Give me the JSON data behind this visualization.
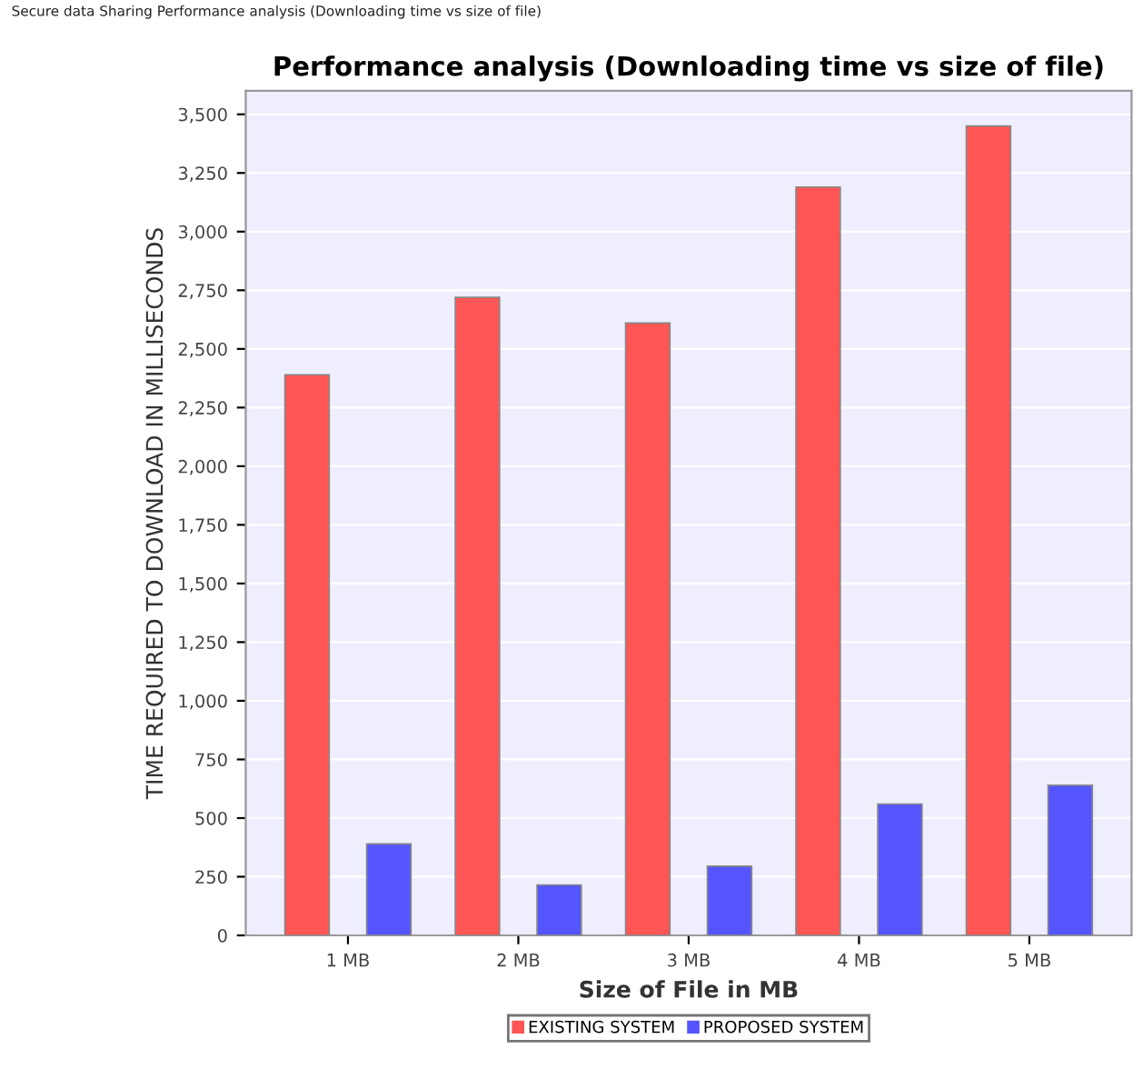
{
  "chart_data": {
    "type": "bar",
    "title": "Performance analysis (Downloading time vs size of file)",
    "annotations": [
      "Secure data Sharing Performance analysis (Downloading time vs size of file)"
    ],
    "xlabel": "Size of File in MB",
    "ylabel": "TIME REQUIRED TO DOWNLOAD IN MILLISECONDS",
    "categories": [
      "1 MB",
      "2 MB",
      "3 MB",
      "4 MB",
      "5 MB"
    ],
    "series": [
      {
        "name": "EXISTING SYSTEM",
        "color": "#ff5555",
        "values": [
          2390,
          2720,
          2610,
          3190,
          3450
        ]
      },
      {
        "name": "PROPOSED SYSTEM",
        "color": "#5555ff",
        "values": [
          390,
          215,
          295,
          560,
          640
        ]
      }
    ],
    "ylim": [
      0,
      3600
    ],
    "yticks": [
      {
        "value": 0,
        "label": "0"
      },
      {
        "value": 250,
        "label": "250"
      },
      {
        "value": 500,
        "label": "500"
      },
      {
        "value": 750,
        "label": "750"
      },
      {
        "value": 1000,
        "label": "1,000"
      },
      {
        "value": 1250,
        "label": "1,250"
      },
      {
        "value": 1500,
        "label": "1,500"
      },
      {
        "value": 1750,
        "label": "1,750"
      },
      {
        "value": 2000,
        "label": "2,000"
      },
      {
        "value": 2250,
        "label": "2,250"
      },
      {
        "value": 2500,
        "label": "2,500"
      },
      {
        "value": 2750,
        "label": "2,750"
      },
      {
        "value": 3000,
        "label": "3,000"
      },
      {
        "value": 3250,
        "label": "3,250"
      },
      {
        "value": 3500,
        "label": "3,500"
      }
    ],
    "grid": "y",
    "legend": "bottom"
  }
}
